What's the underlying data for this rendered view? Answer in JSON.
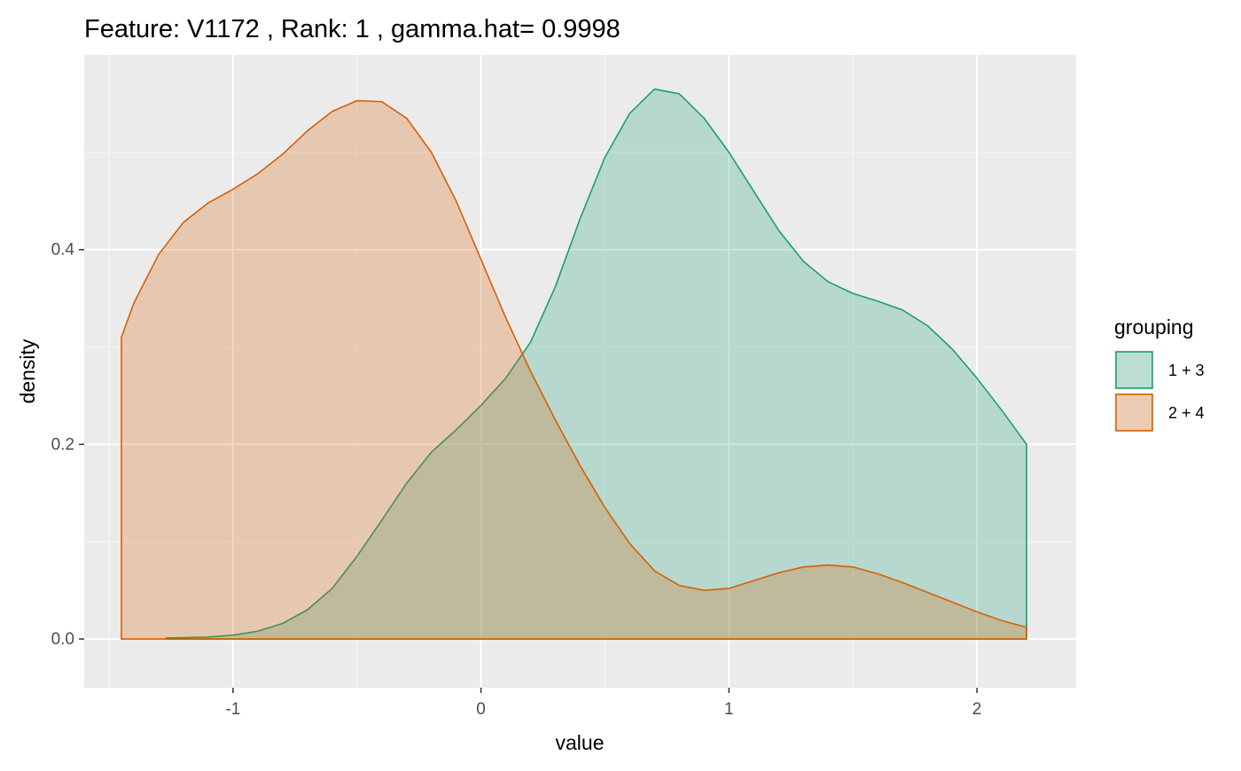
{
  "chart_data": {
    "type": "area",
    "title": "Feature: V1172 , Rank: 1 , gamma.hat= 0.9998",
    "xlabel": "value",
    "ylabel": "density",
    "xlim": [
      -1.6,
      2.4
    ],
    "ylim": [
      -0.05,
      0.6
    ],
    "x_ticks": [
      -1,
      0,
      1,
      2
    ],
    "x_tick_labels": [
      "-1",
      "0",
      "1",
      "2"
    ],
    "y_ticks": [
      0.0,
      0.2,
      0.4
    ],
    "y_tick_labels": [
      "0.0",
      "0.2",
      "0.4"
    ],
    "grid": true,
    "legend": {
      "title": "grouping",
      "position": "right",
      "entries": [
        "1 + 3",
        "2 + 4"
      ]
    },
    "colors": {
      "panel_bg": "#EBEBEB",
      "grid": "#FFFFFF",
      "series_1_3_line": "#1B9E77",
      "series_2_4_line": "#D95F02"
    },
    "series": [
      {
        "name": "1 + 3",
        "color": "#1B9E77",
        "x": [
          -1.27,
          -1.1,
          -1.0,
          -0.9,
          -0.8,
          -0.7,
          -0.6,
          -0.5,
          -0.4,
          -0.3,
          -0.2,
          -0.1,
          0.0,
          0.1,
          0.2,
          0.3,
          0.4,
          0.5,
          0.6,
          0.7,
          0.8,
          0.9,
          1.0,
          1.1,
          1.2,
          1.3,
          1.4,
          1.5,
          1.6,
          1.7,
          1.8,
          1.9,
          2.0,
          2.1,
          2.2
        ],
        "y": [
          0.001,
          0.002,
          0.004,
          0.008,
          0.016,
          0.03,
          0.052,
          0.085,
          0.122,
          0.16,
          0.192,
          0.215,
          0.24,
          0.268,
          0.305,
          0.362,
          0.432,
          0.495,
          0.54,
          0.565,
          0.56,
          0.535,
          0.5,
          0.46,
          0.42,
          0.388,
          0.367,
          0.355,
          0.347,
          0.338,
          0.322,
          0.298,
          0.268,
          0.235,
          0.2
        ]
      },
      {
        "name": "2 + 4",
        "color": "#D95F02",
        "x": [
          -1.45,
          -1.4,
          -1.3,
          -1.2,
          -1.1,
          -1.0,
          -0.9,
          -0.8,
          -0.7,
          -0.6,
          -0.5,
          -0.4,
          -0.3,
          -0.2,
          -0.1,
          0.0,
          0.1,
          0.2,
          0.3,
          0.4,
          0.5,
          0.6,
          0.7,
          0.8,
          0.9,
          1.0,
          1.1,
          1.2,
          1.3,
          1.4,
          1.5,
          1.6,
          1.7,
          1.8,
          1.9,
          2.0,
          2.1,
          2.2
        ],
        "y": [
          0.31,
          0.345,
          0.395,
          0.428,
          0.448,
          0.462,
          0.478,
          0.498,
          0.522,
          0.542,
          0.553,
          0.552,
          0.535,
          0.5,
          0.45,
          0.39,
          0.33,
          0.275,
          0.225,
          0.178,
          0.135,
          0.098,
          0.07,
          0.055,
          0.05,
          0.052,
          0.06,
          0.068,
          0.074,
          0.076,
          0.074,
          0.067,
          0.058,
          0.048,
          0.038,
          0.028,
          0.019,
          0.012
        ]
      }
    ]
  }
}
